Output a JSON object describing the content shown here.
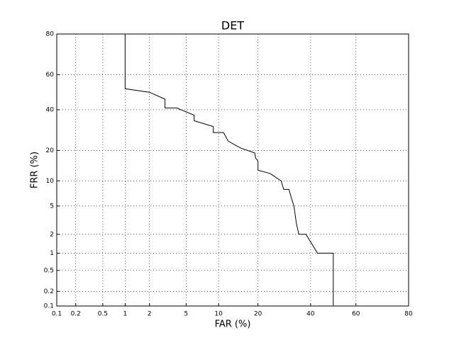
{
  "chart_data": {
    "type": "line",
    "title": "DET",
    "xlabel": "FAR (%)",
    "ylabel": "FRR (%)",
    "scale": "probit",
    "grid": true,
    "xlim": [
      0.1,
      80
    ],
    "ylim": [
      0.1,
      80
    ],
    "xticks": [
      0.1,
      0.2,
      0.5,
      1,
      2,
      5,
      10,
      20,
      40,
      60,
      80
    ],
    "yticks": [
      0.1,
      0.2,
      0.5,
      1,
      2,
      5,
      10,
      20,
      40,
      60,
      80
    ],
    "series": [
      {
        "color": "#000000",
        "x": [
          1,
          1,
          2,
          3,
          3,
          4,
          6,
          6,
          9,
          9,
          11,
          12,
          15,
          19,
          19.3,
          20,
          20,
          24,
          28,
          29,
          31,
          32,
          33,
          34,
          35,
          38,
          43,
          50,
          50
        ],
        "values": [
          80,
          52,
          50,
          46,
          41,
          41,
          37,
          34,
          31,
          28,
          28,
          24,
          21,
          19,
          17,
          16,
          13,
          12,
          10,
          8,
          8,
          6.3,
          5,
          2.9,
          2,
          2,
          1,
          1,
          0.1
        ]
      }
    ]
  }
}
